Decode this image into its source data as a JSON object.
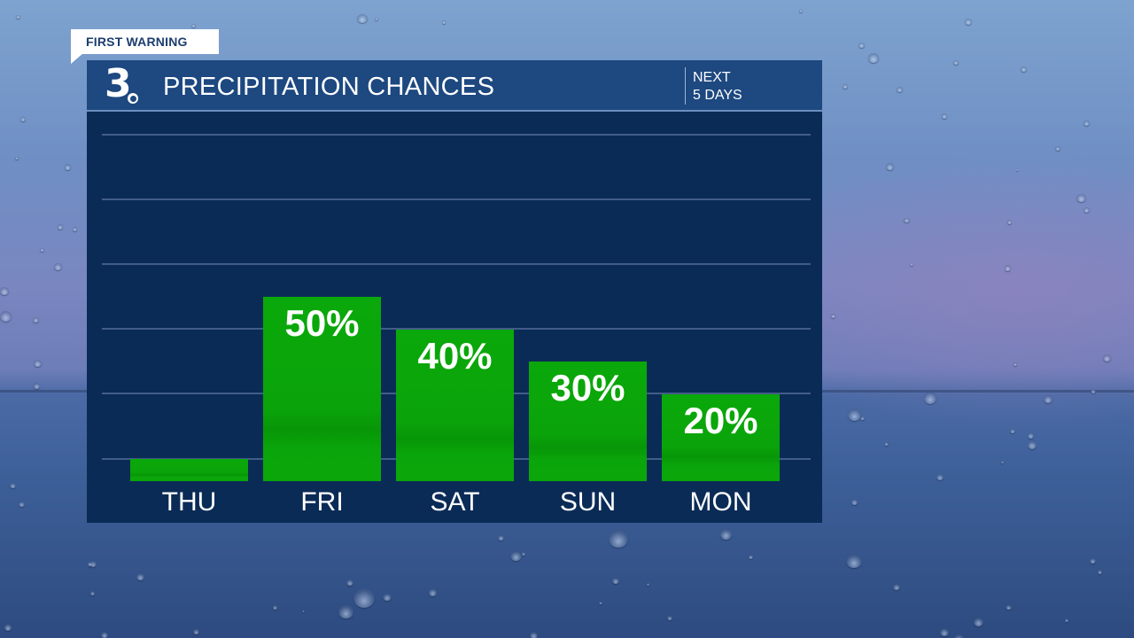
{
  "badge": {
    "label": "FIRST WARNING"
  },
  "header": {
    "logo": "3",
    "title": "PRECIPITATION CHANCES",
    "subtitle_line1": "NEXT",
    "subtitle_line2": "5 DAYS"
  },
  "colors": {
    "bar": "#0aa60a",
    "panel": "#0b2b57",
    "header": "#1d4880",
    "badge_text": "#1c3d6e"
  },
  "chart_data": {
    "type": "bar",
    "title": "PRECIPITATION CHANCES",
    "subtitle": "NEXT 5 DAYS",
    "categories": [
      "THU",
      "FRI",
      "SAT",
      "SUN",
      "MON"
    ],
    "values": [
      0,
      50,
      40,
      30,
      20
    ],
    "labels": [
      "",
      "50%",
      "40%",
      "30%",
      "20%"
    ],
    "xlabel": "",
    "ylabel": "",
    "unit": "%",
    "ylim": [
      0,
      100
    ],
    "grid": true,
    "legend": "none"
  }
}
